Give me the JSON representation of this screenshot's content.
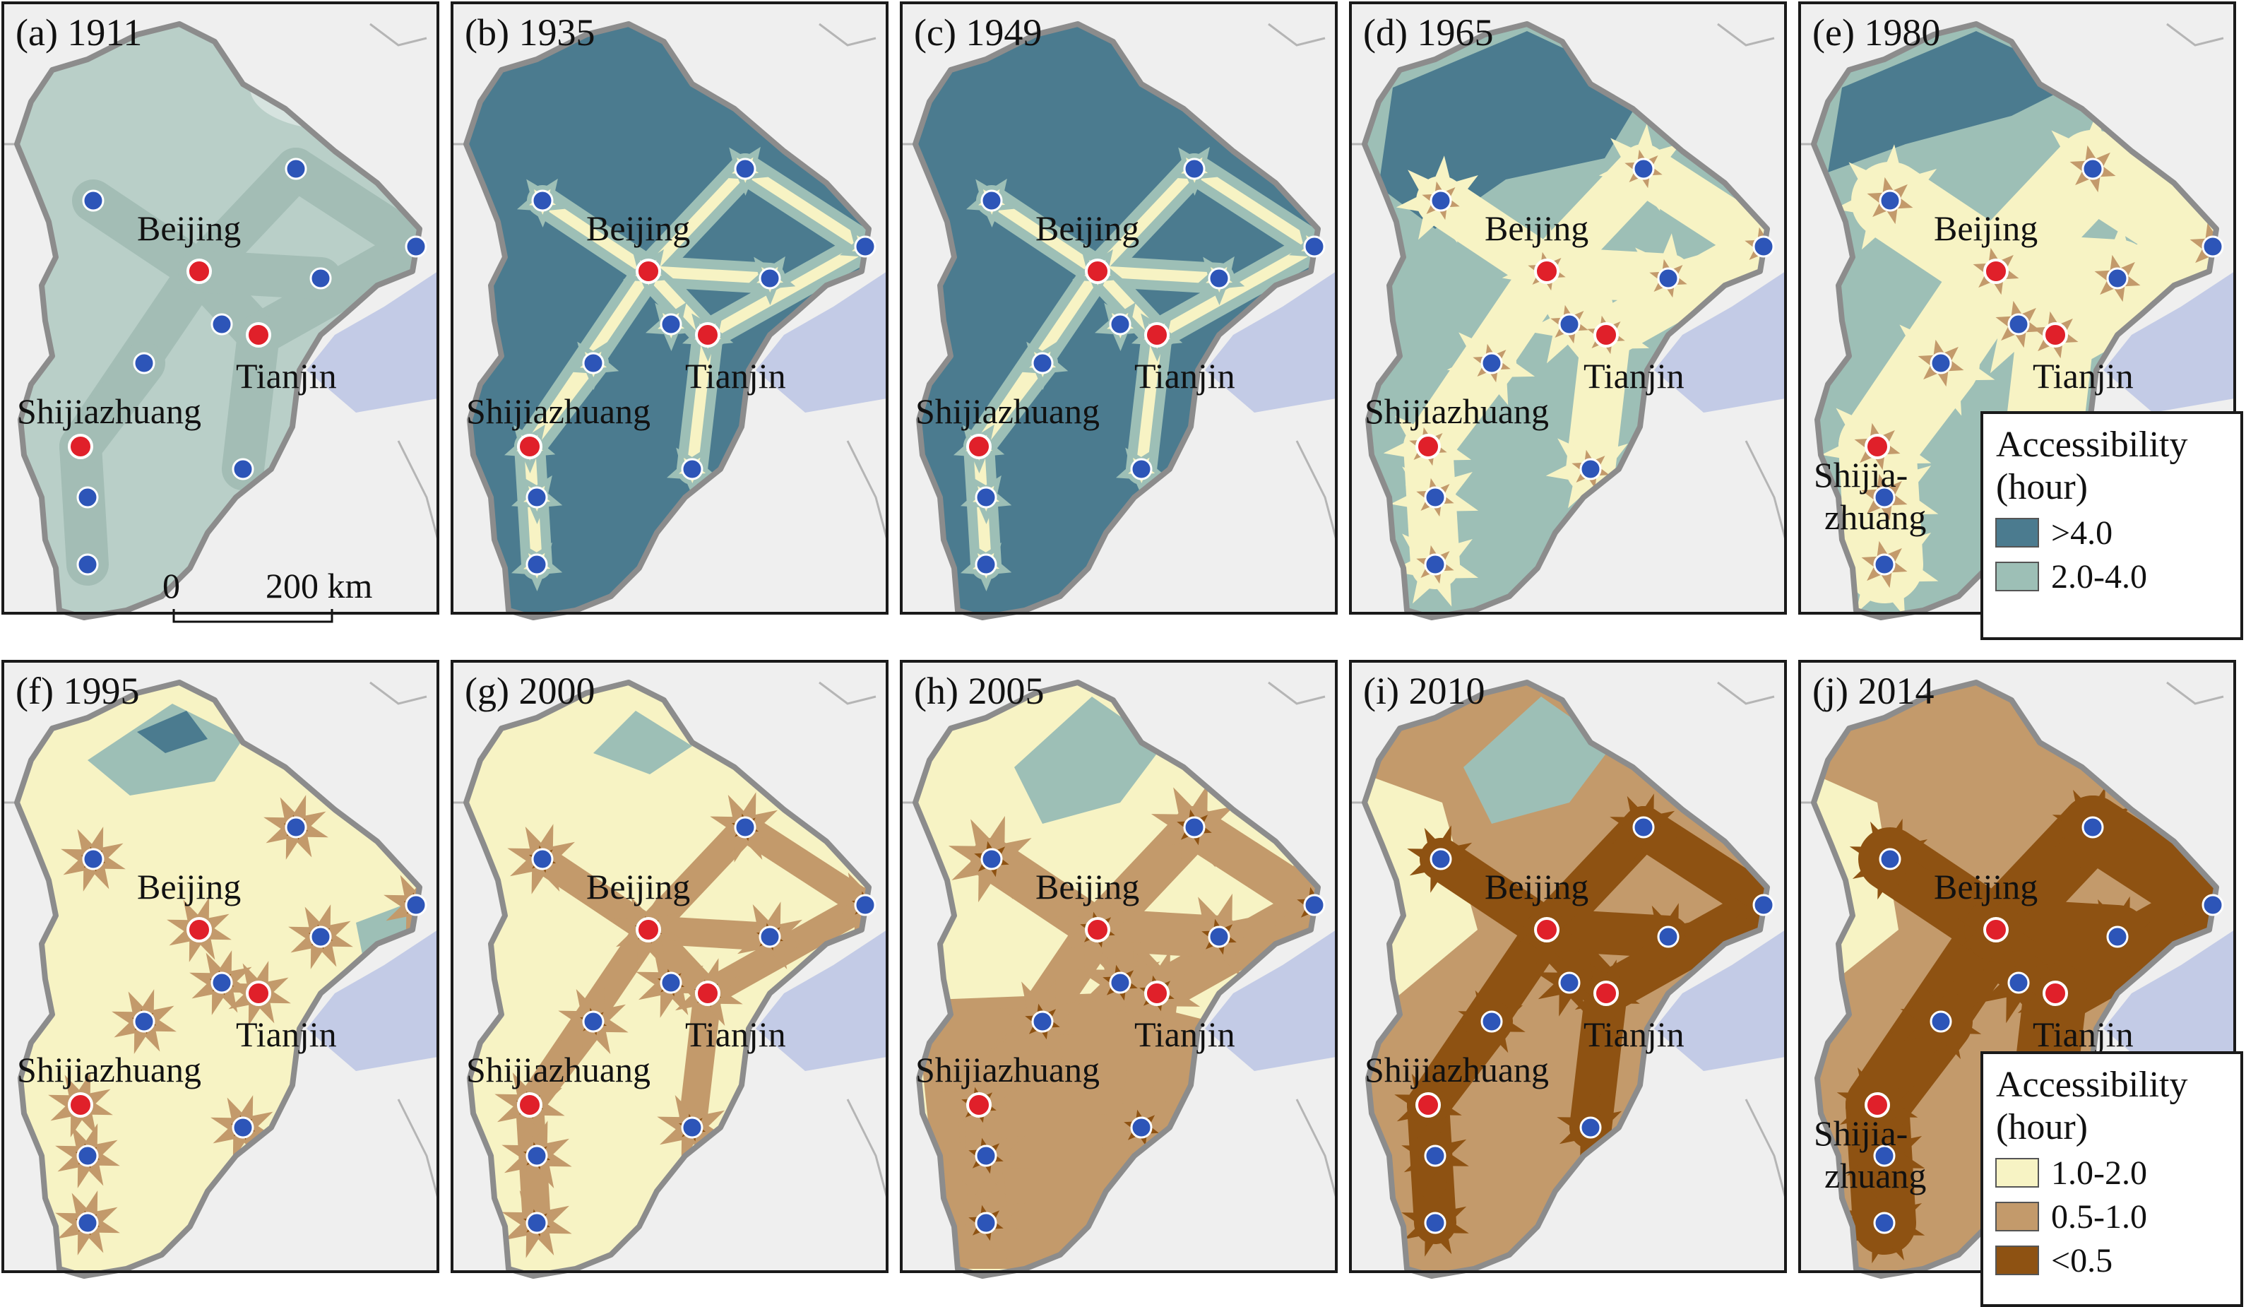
{
  "colors": {
    "panel_bg": "#efefef",
    "sea": "#c3cbe6",
    "outside_boundary": "#b5b5b5",
    "region_outline": "#8c8c8c",
    "class_gt4": "#4b7b8f",
    "class_2_4": "#9dbfb6",
    "class_1_2": "#f7f3c4",
    "class_05_1": "#c39a6b",
    "class_lt05": "#8e5212",
    "class_1911_base": "#b9cfc8",
    "major_city": "#e0202a",
    "minor_city": "#2d55b8",
    "city_stroke": "#ffffff"
  },
  "panels": [
    {
      "title": "(a) 1911",
      "year": 1911,
      "scheme": "1911",
      "labels": {
        "beijing": "Beijing",
        "tianjin": "Tianjin",
        "shijiazhuang": "Shijiazhuang"
      },
      "scale_bar": {
        "zero": "0",
        "distance": "200 km"
      }
    },
    {
      "title": "(b) 1935",
      "year": 1935,
      "scheme": "corridor",
      "labels": {
        "beijing": "Beijing",
        "tianjin": "Tianjin",
        "shijiazhuang": "Shijiazhuang"
      }
    },
    {
      "title": "(c) 1949",
      "year": 1949,
      "scheme": "corridor",
      "labels": {
        "beijing": "Beijing",
        "tianjin": "Tianjin",
        "shijiazhuang": "Shijiazhuang"
      }
    },
    {
      "title": "(d) 1965",
      "year": 1965,
      "scheme": "1965",
      "labels": {
        "beijing": "Beijing",
        "tianjin": "Tianjin",
        "shijiazhuang": "Shijiazhuang"
      }
    },
    {
      "title": "(e) 1980",
      "year": 1980,
      "scheme": "1980",
      "labels": {
        "beijing": "Beijing",
        "tianjin": "Tianjin",
        "shijiazhuang_1": "Shijia-",
        "shijiazhuang_2": "zhuang"
      }
    },
    {
      "title": "(f) 1995",
      "year": 1995,
      "scheme": "1995",
      "labels": {
        "beijing": "Beijing",
        "tianjin": "Tianjin",
        "shijiazhuang": "Shijiazhuang"
      }
    },
    {
      "title": "(g) 2000",
      "year": 2000,
      "scheme": "2000",
      "labels": {
        "beijing": "Beijing",
        "tianjin": "Tianjin",
        "shijiazhuang": "Shijiazhuang"
      }
    },
    {
      "title": "(h) 2005",
      "year": 2005,
      "scheme": "2005",
      "labels": {
        "beijing": "Beijing",
        "tianjin": "Tianjin",
        "shijiazhuang": "Shijiazhuang"
      }
    },
    {
      "title": "(i) 2010",
      "year": 2010,
      "scheme": "2010",
      "labels": {
        "beijing": "Beijing",
        "tianjin": "Tianjin",
        "shijiazhuang": "Shijiazhuang"
      }
    },
    {
      "title": "(j) 2014",
      "year": 2014,
      "scheme": "2014",
      "labels": {
        "beijing": "Beijing",
        "tianjin": "Tianjin",
        "shijiazhuang_1": "Shijia-",
        "shijiazhuang_2": "zhuang"
      }
    }
  ],
  "legend_top": {
    "title_line1": "Accessibility",
    "title_line2": "(hour)",
    "items": [
      {
        "label": ">4.0",
        "color": "#4b7b8f"
      },
      {
        "label": "2.0-4.0",
        "color": "#9dbfb6"
      }
    ]
  },
  "legend_bottom": {
    "title_line1": "Accessibility",
    "title_line2": "(hour)",
    "items": [
      {
        "label": "1.0-2.0",
        "color": "#f7f3c4"
      },
      {
        "label": "0.5-1.0",
        "color": "#c39a6b"
      },
      {
        "label": "<0.5",
        "color": "#8e5212"
      }
    ]
  }
}
